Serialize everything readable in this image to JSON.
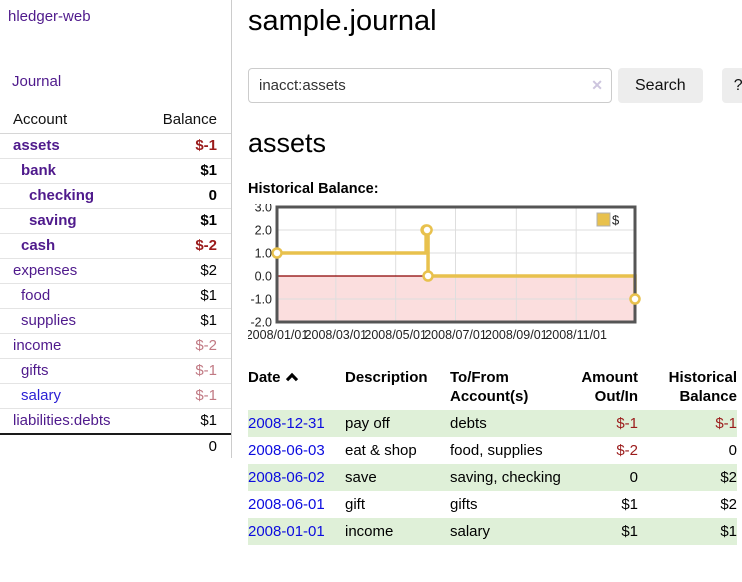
{
  "app": {
    "title": "hledger-web"
  },
  "sidebar": {
    "journal_label": "Journal",
    "accounts_table": {
      "headers": {
        "account": "Account",
        "balance": "Balance"
      },
      "rows": [
        {
          "name": "assets",
          "level": 1,
          "bold": true,
          "balance": "$-1"
        },
        {
          "name": "bank",
          "level": 2,
          "bold": true,
          "balance": "$1"
        },
        {
          "name": "checking",
          "level": 3,
          "bold": true,
          "balance": "0"
        },
        {
          "name": "saving",
          "level": 3,
          "bold": true,
          "balance": "$1"
        },
        {
          "name": "cash",
          "level": 2,
          "bold": true,
          "balance": "$-2"
        },
        {
          "name": "expenses",
          "level": 1,
          "bold": false,
          "balance": "$2"
        },
        {
          "name": "food",
          "level": 2,
          "bold": false,
          "balance": "$1"
        },
        {
          "name": "supplies",
          "level": 2,
          "bold": false,
          "balance": "$1"
        },
        {
          "name": "income",
          "level": 1,
          "bold": false,
          "balance": "$-2"
        },
        {
          "name": "gifts",
          "level": 2,
          "bold": false,
          "balance": "$-1"
        },
        {
          "name": "salary",
          "level": 2,
          "bold": false,
          "balance": "$-1",
          "blue": true
        },
        {
          "name": "liabilities:debts",
          "level": 1,
          "bold": false,
          "balance": "$1"
        }
      ],
      "total": "0"
    }
  },
  "main": {
    "title": "sample.journal",
    "search": {
      "value": "inacct:assets",
      "clear_icon": "✕",
      "search_label": "Search",
      "help_label": "?"
    },
    "section_title": "assets",
    "chart_label": "Historical Balance:"
  },
  "chart_data": {
    "type": "line",
    "title": "Historical Balance",
    "series": [
      {
        "name": "$",
        "step": "after",
        "x": [
          "2008-01-01",
          "2008-06-01",
          "2008-06-02",
          "2008-06-03",
          "2008-12-31"
        ],
        "y": [
          1,
          2,
          2,
          0,
          -1
        ]
      }
    ],
    "x_range": [
      "2008-01-01",
      "2008-12-31"
    ],
    "x_ticks": [
      {
        "date": "2008-01-01",
        "label": "2008/01/01"
      },
      {
        "date": "2008-03-01",
        "label": "2008/03/01"
      },
      {
        "date": "2008-05-01",
        "label": "2008/05/01"
      },
      {
        "date": "2008-07-01",
        "label": "2008/07/01"
      },
      {
        "date": "2008-09-01",
        "label": "2008/09/01"
      },
      {
        "date": "2008-11-01",
        "label": "2008/11/01"
      }
    ],
    "y_ticks": [
      "3.0",
      "2.0",
      "1.0",
      "0.0",
      "-1.0",
      "-2.0"
    ],
    "ylim": [
      -2,
      3
    ],
    "grid": true,
    "legend": {
      "label": "$",
      "position": "top-right"
    },
    "colors": {
      "line": "#e8c14d",
      "negative_fill": "#fbdede",
      "zero_line": "#8b0000",
      "grid": "#dedede",
      "border": "#555555"
    }
  },
  "table": {
    "headers": [
      {
        "label": "Date",
        "sort": "asc"
      },
      {
        "label": "Description"
      },
      {
        "label": "To/From Account(s)"
      },
      {
        "label": "Amount Out/In"
      },
      {
        "label": "Historical Balance"
      }
    ],
    "rows": [
      {
        "date": "2008-12-31",
        "description": "pay off",
        "accounts": "debts",
        "amount": "$-1",
        "balance": "$-1"
      },
      {
        "date": "2008-06-03",
        "description": "eat & shop",
        "accounts": "food, supplies",
        "amount": "$-2",
        "balance": "0"
      },
      {
        "date": "2008-06-02",
        "description": "save",
        "accounts": "saving, checking",
        "amount": "0",
        "balance": "$2"
      },
      {
        "date": "2008-06-01",
        "description": "gift",
        "accounts": "gifts",
        "amount": "$1",
        "balance": "$2"
      },
      {
        "date": "2008-01-01",
        "description": "income",
        "accounts": "salary",
        "amount": "$1",
        "balance": "$1"
      }
    ]
  },
  "colors": {
    "link_purple": "#4f1a8c",
    "link_blue": "#2a1fd4",
    "date_link_blue": "#0c0cdf",
    "negative_strong": "#9b1b1b",
    "negative_faded": "#c17983",
    "row_green": "#dff0d8"
  }
}
